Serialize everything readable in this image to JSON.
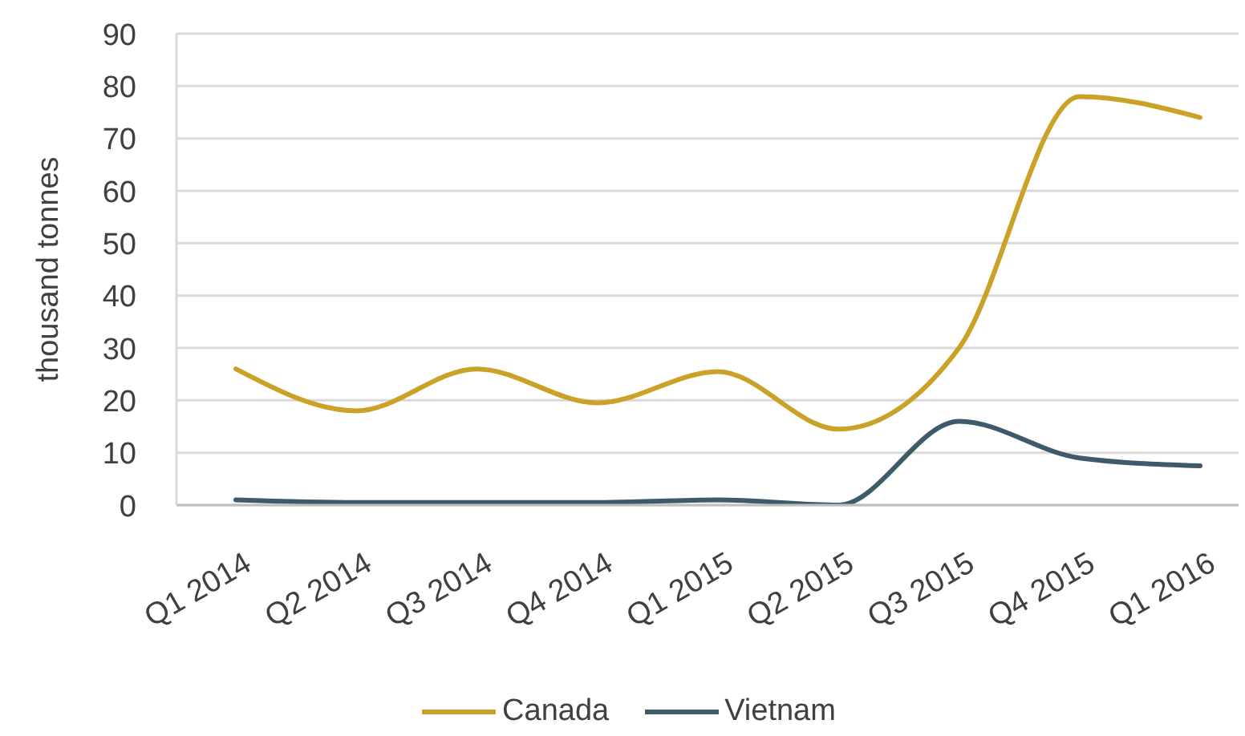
{
  "chart_data": {
    "type": "line",
    "ylabel": "thousand tonnes",
    "categories": [
      "Q1 2014",
      "Q2 2014",
      "Q3 2014",
      "Q4 2014",
      "Q1 2015",
      "Q2 2015",
      "Q3 2015",
      "Q4 2015",
      "Q1 2016"
    ],
    "series": [
      {
        "name": "Canada",
        "color": "#c9a227",
        "values": [
          26,
          18,
          26,
          19.5,
          25.5,
          14.5,
          30,
          78,
          74
        ]
      },
      {
        "name": "Vietnam",
        "color": "#3f5b6b",
        "values": [
          1,
          0.5,
          0.5,
          0.5,
          1,
          0,
          16,
          9,
          7.5
        ]
      }
    ],
    "ylim": [
      0,
      90
    ],
    "yticks": [
      0,
      10,
      20,
      30,
      40,
      50,
      60,
      70,
      80,
      90
    ],
    "grid": "y",
    "legend": "bottom",
    "marker": "none",
    "line_style": "solid"
  }
}
